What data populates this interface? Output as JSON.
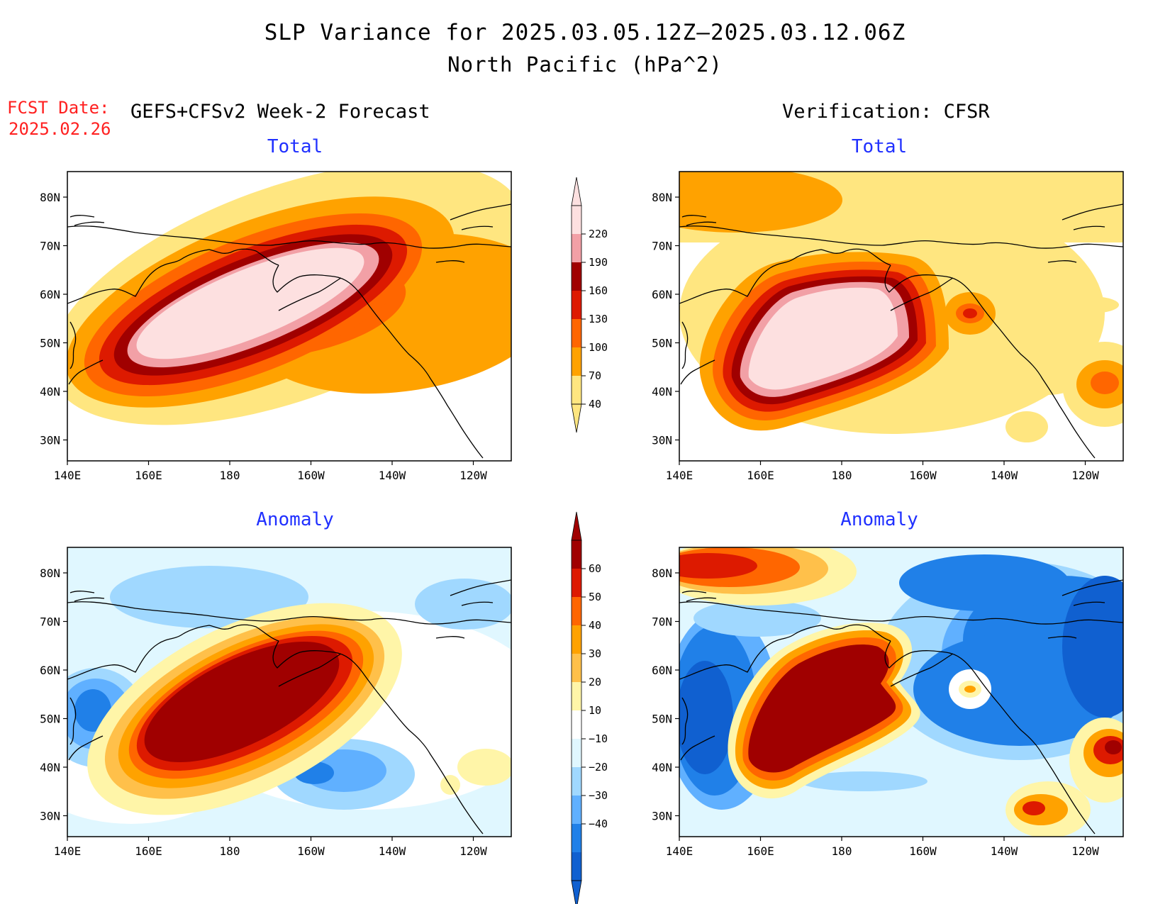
{
  "header": {
    "title_line1": "SLP Variance for 2025.03.05.12Z–2025.03.12.06Z",
    "title_line2": "North Pacific (hPa^2)",
    "fcst_label": "FCST Date:",
    "fcst_date": "2025.02.26",
    "forecast_heading": "GEFS+CFSv2 Week-2 Forecast",
    "verification_heading": "Verification: CFSR"
  },
  "panels": {
    "forecast_total": {
      "subtitle": "Total"
    },
    "verification_total": {
      "subtitle": "Total"
    },
    "forecast_anomaly": {
      "subtitle": "Anomaly"
    },
    "verification_anomaly": {
      "subtitle": "Anomaly"
    }
  },
  "axes": {
    "lat_labels": [
      "80N",
      "70N",
      "60N",
      "50N",
      "40N",
      "30N"
    ],
    "lon_labels": [
      "140E",
      "160E",
      "180",
      "160W",
      "140W",
      "120W"
    ]
  },
  "colorbars": {
    "total": {
      "labels": [
        "220",
        "190",
        "160",
        "130",
        "100",
        "70",
        "40"
      ],
      "colors": [
        "#fde0e0",
        "#f2a0a6",
        "#a00000",
        "#dd1a00",
        "#ff6600",
        "#ffa200",
        "#ffe680"
      ]
    },
    "anomaly": {
      "labels": [
        "60",
        "50",
        "40",
        "30",
        "20",
        "10",
        "−10",
        "−20",
        "−30",
        "−40"
      ],
      "colors": [
        "#a00000",
        "#dd1a00",
        "#ff6600",
        "#ffa200",
        "#ffc04a",
        "#fff5a8",
        "#ffffff",
        "#e0f7ff",
        "#a0d8ff",
        "#60b0ff",
        "#2080e8",
        "#1060d0"
      ]
    }
  }
}
